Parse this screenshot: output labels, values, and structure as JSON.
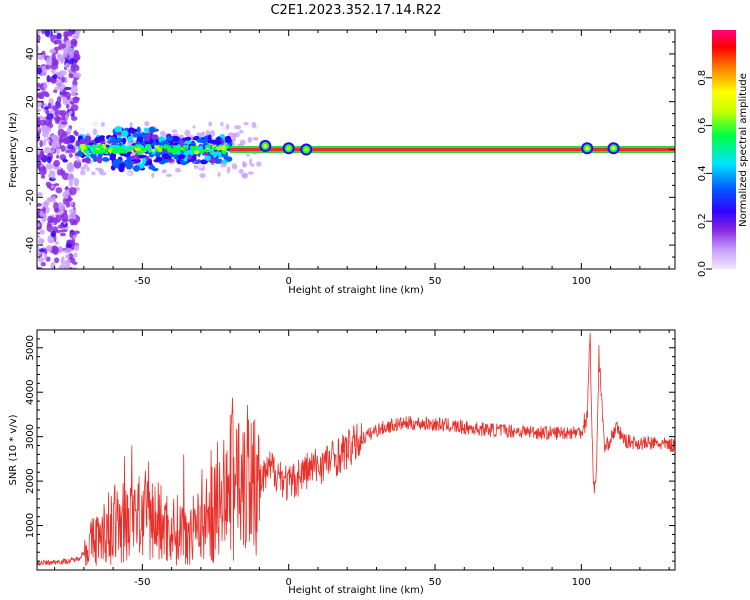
{
  "title": "C2E1.2023.352.17.14.R22",
  "colors": {
    "snr_line": "#e8302a",
    "carrier": "#e8302a",
    "carrier_glow": "#27d94a",
    "frame": "#000000"
  },
  "chart_data": [
    {
      "type": "heatmap",
      "title": "C2E1.2023.352.17.14.R22",
      "xlabel": "Height of straight line (km)",
      "ylabel": "Frequency (Hz)",
      "xlim": [
        -86,
        132
      ],
      "ylim": [
        -50,
        50
      ],
      "x_ticks": [
        -50,
        0,
        50,
        100
      ],
      "y_ticks": [
        -40,
        -20,
        0,
        20,
        40
      ],
      "colorbar": {
        "label": "Normalized spectral amplitude",
        "range": [
          0.0,
          1.0
        ],
        "ticks": [
          0.0,
          0.2,
          0.4,
          0.6,
          0.8
        ],
        "colormap": [
          "#f2e6ff",
          "#c9a0ff",
          "#8a2be2",
          "#3000ff",
          "#0060ff",
          "#00e5ff",
          "#00ff40",
          "#c8ff00",
          "#ffff00",
          "#ff8000",
          "#ff0000",
          "#ff0080"
        ]
      },
      "carrier_frequency_hz": 0.0,
      "noise_region_x": [
        -86,
        -72
      ],
      "carrier_segments": [
        {
          "x0": -72,
          "x1": -20,
          "spread_hz": 6,
          "amplitude": 0.45
        },
        {
          "x0": -20,
          "x1": 132,
          "spread_hz": 1,
          "amplitude": 0.95
        }
      ],
      "blobs": [
        {
          "x": -8,
          "y": 1.5,
          "amplitude": 0.7
        },
        {
          "x": 0,
          "y": 0.5,
          "amplitude": 0.6
        },
        {
          "x": 6,
          "y": 0,
          "amplitude": 0.6
        },
        {
          "x": 102,
          "y": 0.5,
          "amplitude": 0.7
        },
        {
          "x": 111,
          "y": 0.5,
          "amplitude": 0.7
        }
      ]
    },
    {
      "type": "line",
      "xlabel": "Height of straight line (km)",
      "ylabel": "SNR (10 * v/v)",
      "xlim": [
        -86,
        132
      ],
      "ylim": [
        0,
        5400
      ],
      "x_ticks": [
        -50,
        0,
        50,
        100
      ],
      "y_ticks": [
        1000,
        2000,
        3000,
        4000,
        5000
      ],
      "series": [
        {
          "color": "#e8302a",
          "x": [
            -86,
            -80,
            -75,
            -72,
            -70,
            -67,
            -64,
            -60,
            -55,
            -50,
            -45,
            -40,
            -35,
            -30,
            -25,
            -22,
            -20,
            -18,
            -15,
            -12,
            -10,
            -6,
            -3,
            0,
            5,
            10,
            15,
            20,
            25,
            30,
            35,
            40,
            45,
            50,
            55,
            60,
            70,
            80,
            85,
            90,
            95,
            100,
            102,
            103,
            104,
            105,
            106,
            108,
            112,
            115,
            120,
            125,
            132
          ],
          "y": [
            150,
            180,
            200,
            250,
            400,
            650,
            800,
            1000,
            1100,
            1200,
            1100,
            900,
            900,
            1050,
            1300,
            1650,
            1700,
            1900,
            2300,
            2200,
            1900,
            2300,
            2150,
            1900,
            2200,
            2350,
            2500,
            2700,
            2950,
            3150,
            3250,
            3300,
            3300,
            3280,
            3250,
            3200,
            3150,
            3120,
            3100,
            3080,
            3100,
            3100,
            3500,
            5300,
            2000,
            1900,
            4800,
            2700,
            3200,
            2900,
            2850,
            2850,
            2800
          ]
        }
      ]
    }
  ]
}
